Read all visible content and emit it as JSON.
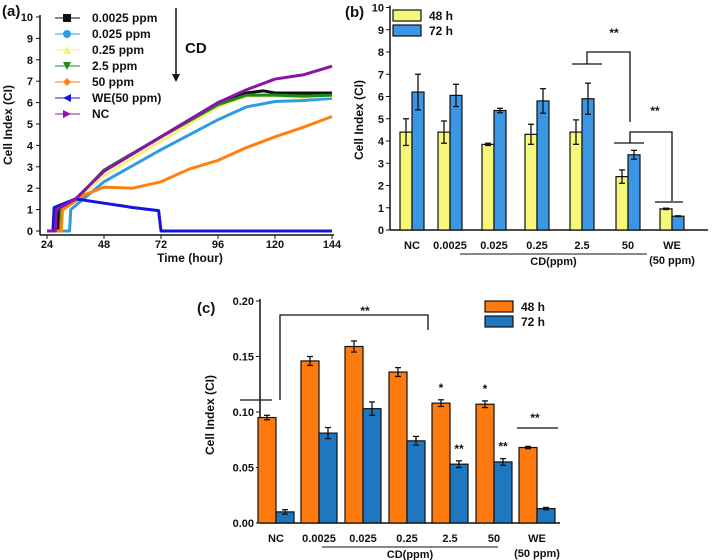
{
  "chart_data": [
    {
      "panel": "(a)",
      "type": "line",
      "xlabel": "Time (hour)",
      "ylabel": "Cell Index (CI)",
      "xlim": [
        24,
        144
      ],
      "ylim": [
        0,
        10
      ],
      "xticks": [
        24,
        48,
        72,
        96,
        120,
        144
      ],
      "yticks": [
        0,
        1,
        2,
        3,
        4,
        5,
        6,
        7,
        8,
        9,
        10
      ],
      "grid": false,
      "legend_position": "top-left",
      "annotation": {
        "text": "CD",
        "arrow": "down"
      },
      "series": [
        {
          "name": "0.0025 ppm",
          "color": "#111111",
          "marker": "square",
          "points": [
            [
              24,
              0
            ],
            [
              28.5,
              0
            ],
            [
              29,
              0.9
            ],
            [
              36,
              1.4
            ],
            [
              48,
              2.8
            ],
            [
              72,
              4.4
            ],
            [
              96,
              6.0
            ],
            [
              108,
              6.45
            ],
            [
              115,
              6.55
            ],
            [
              120,
              6.45
            ],
            [
              132,
              6.45
            ],
            [
              144,
              6.45
            ]
          ]
        },
        {
          "name": "0.025 ppm",
          "color": "#2f9be0",
          "marker": "circle",
          "points": [
            [
              24,
              0
            ],
            [
              33.5,
              0
            ],
            [
              34,
              1.0
            ],
            [
              48,
              2.3
            ],
            [
              72,
              3.8
            ],
            [
              96,
              5.2
            ],
            [
              108,
              5.8
            ],
            [
              120,
              6.05
            ],
            [
              132,
              6.1
            ],
            [
              144,
              6.2
            ]
          ]
        },
        {
          "name": "0.25 ppm",
          "color": "#f2f27a",
          "marker": "triangle-up",
          "points": [
            [
              24,
              0
            ],
            [
              30,
              0
            ],
            [
              30.5,
              0.95
            ],
            [
              36,
              1.4
            ],
            [
              48,
              2.6
            ],
            [
              72,
              4.2
            ],
            [
              96,
              5.8
            ],
            [
              108,
              6.3
            ],
            [
              120,
              6.3
            ],
            [
              132,
              6.25
            ],
            [
              144,
              6.3
            ]
          ]
        },
        {
          "name": "2.5 ppm",
          "color": "#1c8a1c",
          "marker": "triangle-down",
          "points": [
            [
              24,
              0
            ],
            [
              29.5,
              0
            ],
            [
              30,
              0.95
            ],
            [
              36,
              1.45
            ],
            [
              48,
              2.85
            ],
            [
              72,
              4.4
            ],
            [
              96,
              5.9
            ],
            [
              108,
              6.35
            ],
            [
              120,
              6.35
            ],
            [
              132,
              6.3
            ],
            [
              144,
              6.35
            ]
          ]
        },
        {
          "name": "50 ppm",
          "color": "#ff8010",
          "marker": "diamond",
          "points": [
            [
              24,
              0
            ],
            [
              30,
              0
            ],
            [
              30.5,
              1.0
            ],
            [
              40,
              1.7
            ],
            [
              48,
              2.05
            ],
            [
              60,
              2.0
            ],
            [
              72,
              2.3
            ],
            [
              84,
              2.9
            ],
            [
              96,
              3.3
            ],
            [
              108,
              3.9
            ],
            [
              120,
              4.4
            ],
            [
              132,
              4.85
            ],
            [
              144,
              5.35
            ]
          ]
        },
        {
          "name": "WE(50 ppm)",
          "color": "#1414e0",
          "marker": "triangle-left",
          "points": [
            [
              24,
              0
            ],
            [
              26.5,
              0
            ],
            [
              27,
              1.1
            ],
            [
              36,
              1.5
            ],
            [
              48,
              1.3
            ],
            [
              60,
              1.1
            ],
            [
              71,
              0.95
            ],
            [
              72,
              0
            ],
            [
              144,
              0
            ]
          ]
        },
        {
          "name": "NC",
          "color": "#8a14a8",
          "marker": "triangle-right",
          "points": [
            [
              24,
              0
            ],
            [
              27.5,
              0
            ],
            [
              28,
              1.0
            ],
            [
              36,
              1.5
            ],
            [
              48,
              2.8
            ],
            [
              72,
              4.4
            ],
            [
              96,
              6.0
            ],
            [
              108,
              6.6
            ],
            [
              120,
              7.1
            ],
            [
              132,
              7.3
            ],
            [
              144,
              7.7
            ]
          ]
        }
      ]
    },
    {
      "panel": "(b)",
      "type": "bar",
      "ylabel": "Cell Index (CI)",
      "ylim": [
        0,
        10
      ],
      "yticks": [
        0,
        1,
        2,
        3,
        4,
        5,
        6,
        7,
        8,
        9,
        10
      ],
      "categories": [
        "NC",
        "0.0025",
        "0.025",
        "0.25",
        "2.5",
        "50",
        "WE"
      ],
      "category_sublabels": {
        "WE": "(50 ppm)"
      },
      "group_label": "CD(ppm)",
      "legend_position": "top-left",
      "series": [
        {
          "name": "48 h",
          "color": "#f7f77a",
          "values": [
            4.4,
            4.4,
            3.85,
            4.3,
            4.4,
            2.4,
            0.95
          ],
          "errors": [
            0.6,
            0.5,
            0.05,
            0.45,
            0.55,
            0.3,
            0.03
          ]
        },
        {
          "name": "72 h",
          "color": "#3c96e6",
          "values": [
            6.2,
            6.05,
            5.37,
            5.8,
            5.9,
            3.38,
            0.62
          ],
          "errors": [
            0.8,
            0.5,
            0.1,
            0.55,
            0.7,
            0.2,
            0.02
          ]
        }
      ],
      "significance": [
        "**",
        "**"
      ]
    },
    {
      "panel": "(c)",
      "type": "bar",
      "ylabel": "Cell Index (CI)",
      "ylim": [
        0,
        0.2
      ],
      "yticks": [
        "0.00",
        "0.05",
        "0.10",
        "0.15",
        "0.20"
      ],
      "categories": [
        "NC",
        "0.0025",
        "0.025",
        "0.25",
        "2.5",
        "50",
        "WE"
      ],
      "category_sublabels": {
        "WE": "(50 ppm)"
      },
      "group_label": "CD(ppm)",
      "legend_position": "top-right",
      "series": [
        {
          "name": "48 h",
          "color": "#ff7a0e",
          "values": [
            0.095,
            0.146,
            0.159,
            0.136,
            0.108,
            0.107,
            0.068
          ],
          "errors": [
            0.002,
            0.004,
            0.005,
            0.004,
            0.003,
            0.003,
            0.001
          ],
          "labels": [
            "",
            "",
            "",
            "",
            "*",
            "*",
            ""
          ]
        },
        {
          "name": "72 h",
          "color": "#1f77c0",
          "values": [
            0.01,
            0.081,
            0.103,
            0.074,
            0.053,
            0.055,
            0.013
          ],
          "errors": [
            0.002,
            0.005,
            0.006,
            0.004,
            0.003,
            0.003,
            0.001
          ],
          "labels": [
            "",
            "",
            "",
            "",
            "**",
            "**",
            ""
          ]
        }
      ],
      "significance": [
        "**",
        "**"
      ]
    }
  ]
}
